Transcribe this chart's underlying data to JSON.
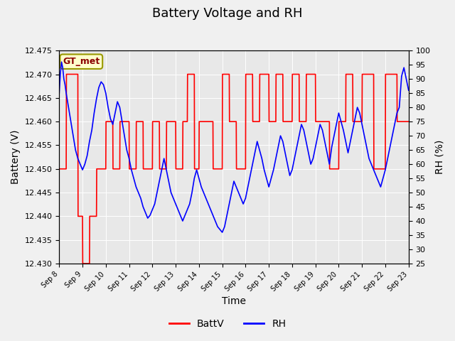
{
  "title": "Battery Voltage and RH",
  "xlabel": "Time",
  "ylabel_left": "Battery (V)",
  "ylabel_right": "RH (%)",
  "legend_label": "GT_met",
  "series_labels": [
    "BattV",
    "RH"
  ],
  "ylim_left": [
    12.43,
    12.475
  ],
  "ylim_right": [
    25,
    100
  ],
  "yticks_left": [
    12.43,
    12.435,
    12.44,
    12.445,
    12.45,
    12.455,
    12.46,
    12.465,
    12.47,
    12.475
  ],
  "yticks_right": [
    25,
    30,
    35,
    40,
    45,
    50,
    55,
    60,
    65,
    70,
    75,
    80,
    85,
    90,
    95,
    100
  ],
  "x_tick_labels": [
    "Sep 8",
    "Sep 9",
    "Sep 10",
    "Sep 11",
    "Sep 12",
    "Sep 13",
    "Sep 14",
    "Sep 15",
    "Sep 16",
    "Sep 17",
    "Sep 18",
    "Sep 19",
    "Sep 20",
    "Sep 21",
    "Sep 22",
    "Sep 23"
  ],
  "background_color": "#f0f0f0",
  "plot_bg_color": "#e8e8e8",
  "title_fontsize": 13,
  "axis_fontsize": 10,
  "tick_fontsize": 8,
  "legend_fontsize": 10,
  "batt_x": [
    0.0,
    0.3,
    0.31,
    0.8,
    0.81,
    1.0,
    1.01,
    1.3,
    1.31,
    1.6,
    1.61,
    2.0,
    2.01,
    2.3,
    2.31,
    2.6,
    2.61,
    3.0,
    3.01,
    3.3,
    3.31,
    3.6,
    3.61,
    4.0,
    4.01,
    4.3,
    4.31,
    4.6,
    4.61,
    5.0,
    5.01,
    5.3,
    5.31,
    5.5,
    5.51,
    5.8,
    5.81,
    6.0,
    6.01,
    6.3,
    6.31,
    6.6,
    6.61,
    7.0,
    7.01,
    7.3,
    7.31,
    7.6,
    7.61,
    8.0,
    8.01,
    8.3,
    8.31,
    8.6,
    8.61,
    9.0,
    9.01,
    9.3,
    9.31,
    9.6,
    9.61,
    10.0,
    10.01,
    10.3,
    10.31,
    10.6,
    10.61,
    11.0,
    11.01,
    11.3,
    11.31,
    11.6,
    11.61,
    12.0,
    12.01,
    12.3,
    12.31,
    12.6,
    12.61,
    13.0,
    13.01,
    13.5,
    13.51,
    14.0,
    14.01,
    14.5,
    14.51,
    15.0
  ],
  "batt_y": [
    12.45,
    12.45,
    12.47,
    12.47,
    12.44,
    12.44,
    12.43,
    12.43,
    12.44,
    12.44,
    12.45,
    12.45,
    12.46,
    12.46,
    12.45,
    12.45,
    12.46,
    12.46,
    12.45,
    12.45,
    12.46,
    12.46,
    12.45,
    12.45,
    12.46,
    12.46,
    12.45,
    12.45,
    12.46,
    12.46,
    12.45,
    12.45,
    12.46,
    12.46,
    12.47,
    12.47,
    12.45,
    12.45,
    12.46,
    12.46,
    12.46,
    12.46,
    12.45,
    12.45,
    12.47,
    12.47,
    12.46,
    12.46,
    12.45,
    12.45,
    12.47,
    12.47,
    12.46,
    12.46,
    12.47,
    12.47,
    12.46,
    12.46,
    12.47,
    12.47,
    12.46,
    12.46,
    12.47,
    12.47,
    12.46,
    12.46,
    12.47,
    12.47,
    12.46,
    12.46,
    12.46,
    12.46,
    12.45,
    12.45,
    12.46,
    12.46,
    12.47,
    12.47,
    12.46,
    12.46,
    12.47,
    12.47,
    12.45,
    12.45,
    12.47,
    12.47,
    12.46,
    12.46
  ],
  "rh_x": [
    0.0,
    0.05,
    0.1,
    0.15,
    0.2,
    0.25,
    0.3,
    0.4,
    0.5,
    0.6,
    0.7,
    0.8,
    0.9,
    1.0,
    1.1,
    1.2,
    1.3,
    1.4,
    1.5,
    1.6,
    1.7,
    1.8,
    1.9,
    2.0,
    2.1,
    2.2,
    2.3,
    2.4,
    2.5,
    2.6,
    2.7,
    2.8,
    2.9,
    3.0,
    3.1,
    3.2,
    3.3,
    3.4,
    3.5,
    3.6,
    3.7,
    3.8,
    3.9,
    4.0,
    4.1,
    4.2,
    4.3,
    4.4,
    4.5,
    4.6,
    4.7,
    4.8,
    4.9,
    5.0,
    5.1,
    5.2,
    5.3,
    5.4,
    5.5,
    5.6,
    5.7,
    5.8,
    5.9,
    6.0,
    6.1,
    6.2,
    6.3,
    6.4,
    6.5,
    6.6,
    6.7,
    6.8,
    6.9,
    7.0,
    7.1,
    7.2,
    7.3,
    7.4,
    7.5,
    7.6,
    7.7,
    7.8,
    7.9,
    8.0,
    8.1,
    8.2,
    8.3,
    8.4,
    8.5,
    8.6,
    8.7,
    8.8,
    8.9,
    9.0,
    9.1,
    9.2,
    9.3,
    9.4,
    9.5,
    9.6,
    9.7,
    9.8,
    9.9,
    10.0,
    10.1,
    10.2,
    10.3,
    10.4,
    10.5,
    10.6,
    10.7,
    10.8,
    10.9,
    11.0,
    11.1,
    11.2,
    11.3,
    11.4,
    11.5,
    11.6,
    11.7,
    11.8,
    11.9,
    12.0,
    12.1,
    12.2,
    12.3,
    12.4,
    12.5,
    12.6,
    12.7,
    12.8,
    12.9,
    13.0,
    13.1,
    13.2,
    13.3,
    13.4,
    13.5,
    13.6,
    13.7,
    13.8,
    13.9,
    14.0,
    14.1,
    14.2,
    14.3,
    14.4,
    14.5,
    14.6,
    14.7,
    14.8,
    14.9,
    15.0
  ],
  "rh_y": [
    85,
    92,
    96,
    94,
    90,
    88,
    85,
    80,
    75,
    70,
    65,
    62,
    60,
    58,
    60,
    63,
    68,
    72,
    78,
    83,
    87,
    89,
    88,
    85,
    80,
    76,
    74,
    78,
    82,
    80,
    75,
    70,
    65,
    62,
    58,
    55,
    52,
    50,
    48,
    45,
    43,
    41,
    42,
    44,
    46,
    50,
    54,
    58,
    62,
    58,
    54,
    50,
    48,
    46,
    44,
    42,
    40,
    42,
    44,
    46,
    50,
    55,
    58,
    55,
    52,
    50,
    48,
    46,
    44,
    42,
    40,
    38,
    37,
    36,
    38,
    42,
    46,
    50,
    54,
    52,
    50,
    48,
    46,
    48,
    52,
    56,
    60,
    64,
    68,
    65,
    62,
    58,
    55,
    52,
    55,
    58,
    62,
    66,
    70,
    68,
    64,
    60,
    56,
    58,
    62,
    66,
    70,
    74,
    72,
    68,
    64,
    60,
    62,
    66,
    70,
    74,
    72,
    68,
    64,
    60,
    66,
    70,
    74,
    78,
    75,
    72,
    68,
    64,
    68,
    72,
    76,
    80,
    78,
    74,
    70,
    66,
    62,
    60,
    58,
    56,
    54,
    52,
    55,
    58,
    62,
    66,
    70,
    74,
    78,
    80,
    91,
    94,
    90,
    86
  ]
}
